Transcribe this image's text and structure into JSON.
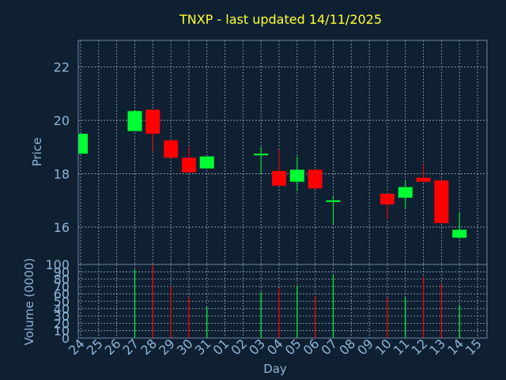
{
  "chart_data": [
    {
      "type": "candlestick",
      "title": "TNXP - last updated 14/11/2025",
      "ylabel": "Price",
      "ylim": [
        14.6,
        23.0
      ],
      "yticks": [
        16,
        18,
        20,
        22
      ],
      "ytick_labels": [
        "16",
        "18",
        "20",
        "22"
      ],
      "grid": true,
      "up_color": "#00ff33",
      "down_color": "#ff0000",
      "candles": [
        {
          "day": "24",
          "open": 18.75,
          "high": 19.5,
          "low": 18.75,
          "close": 19.5
        },
        {
          "day": "27",
          "open": 19.6,
          "high": 20.4,
          "low": 19.6,
          "close": 20.35
        },
        {
          "day": "28",
          "open": 20.4,
          "high": 20.4,
          "low": 18.85,
          "close": 19.5
        },
        {
          "day": "29",
          "open": 19.25,
          "high": 19.25,
          "low": 18.6,
          "close": 18.6
        },
        {
          "day": "30",
          "open": 18.6,
          "high": 19.0,
          "low": 18.05,
          "close": 18.05
        },
        {
          "day": "31",
          "open": 18.2,
          "high": 18.65,
          "low": 18.2,
          "close": 18.65
        },
        {
          "day": "03",
          "open": 18.7,
          "high": 19.0,
          "low": 18.0,
          "close": 18.75
        },
        {
          "day": "04",
          "open": 18.1,
          "high": 18.9,
          "low": 17.55,
          "close": 17.55
        },
        {
          "day": "05",
          "open": 17.7,
          "high": 18.65,
          "low": 17.35,
          "close": 18.15
        },
        {
          "day": "06",
          "open": 18.15,
          "high": 18.15,
          "low": 17.4,
          "close": 17.45
        },
        {
          "day": "07",
          "open": 16.95,
          "high": 17.15,
          "low": 16.1,
          "close": 17.0
        },
        {
          "day": "10",
          "open": 17.25,
          "high": 17.25,
          "low": 16.3,
          "close": 16.85
        },
        {
          "day": "11",
          "open": 17.1,
          "high": 17.75,
          "low": 16.7,
          "close": 17.5
        },
        {
          "day": "12",
          "open": 17.85,
          "high": 18.35,
          "low": 17.7,
          "close": 17.7
        },
        {
          "day": "13",
          "open": 17.75,
          "high": 17.75,
          "low": 16.15,
          "close": 16.15
        },
        {
          "day": "14",
          "open": 15.6,
          "high": 16.55,
          "low": 15.55,
          "close": 15.9
        }
      ]
    },
    {
      "type": "bar",
      "ylabel": "Volume (0000)",
      "xlabel": "Day",
      "ylim": [
        0,
        100
      ],
      "yticks": [
        0,
        10,
        20,
        30,
        40,
        50,
        60,
        70,
        80,
        90,
        100
      ],
      "ytick_labels": [
        "0",
        "10",
        "20",
        "30",
        "40",
        "50",
        "60",
        "70",
        "80",
        "90",
        "100"
      ],
      "categories": [
        "24",
        "25",
        "26",
        "27",
        "28",
        "29",
        "30",
        "31",
        "01",
        "02",
        "03",
        "04",
        "05",
        "06",
        "07",
        "08",
        "09",
        "10",
        "11",
        "12",
        "13",
        "14",
        "15"
      ],
      "bars": [
        {
          "day": "27",
          "value": 93,
          "direction": "up"
        },
        {
          "day": "28",
          "value": 100,
          "direction": "down"
        },
        {
          "day": "29",
          "value": 70,
          "direction": "down"
        },
        {
          "day": "30",
          "value": 55,
          "direction": "down"
        },
        {
          "day": "31",
          "value": 42,
          "direction": "up"
        },
        {
          "day": "03",
          "value": 62,
          "direction": "up"
        },
        {
          "day": "04",
          "value": 67,
          "direction": "down"
        },
        {
          "day": "05",
          "value": 71,
          "direction": "up"
        },
        {
          "day": "06",
          "value": 57,
          "direction": "down"
        },
        {
          "day": "07",
          "value": 87,
          "direction": "up"
        },
        {
          "day": "10",
          "value": 55,
          "direction": "down"
        },
        {
          "day": "11",
          "value": 55,
          "direction": "up"
        },
        {
          "day": "12",
          "value": 83,
          "direction": "down"
        },
        {
          "day": "13",
          "value": 73,
          "direction": "down"
        },
        {
          "day": "14",
          "value": 45,
          "direction": "up"
        }
      ]
    }
  ]
}
